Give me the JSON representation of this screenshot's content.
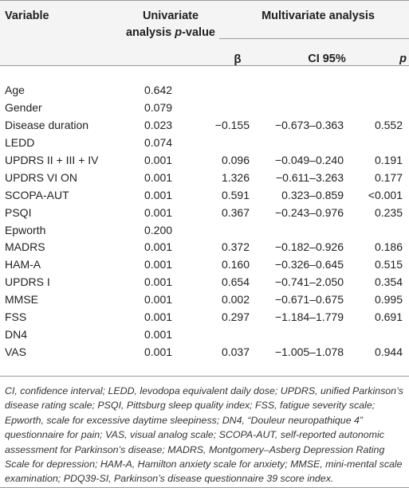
{
  "header": {
    "variable": "Variable",
    "univariate_line1": "Univariate",
    "univariate_line2_prefix": "analysis ",
    "univariate_line2_italic": "p",
    "univariate_line2_suffix": "-value",
    "multivariate": "Multivariate analysis",
    "beta": "β",
    "ci": "CI 95%",
    "p": "p"
  },
  "rows": [
    {
      "variable": "Age",
      "univariate": "0.642",
      "beta": "",
      "ci": "",
      "p": ""
    },
    {
      "variable": "Gender",
      "univariate": "0.079",
      "beta": "",
      "ci": "",
      "p": ""
    },
    {
      "variable": "Disease duration",
      "univariate": "0.023",
      "beta": "−0.155",
      "ci": "−0.673–0.363",
      "p": "0.552"
    },
    {
      "variable": "LEDD",
      "univariate": "0.074",
      "beta": "",
      "ci": "",
      "p": ""
    },
    {
      "variable": "UPDRS II + III + IV",
      "univariate": "0.001",
      "beta": "0.096",
      "ci": "−0.049–0.240",
      "p": "0.191"
    },
    {
      "variable": "UPDRS VI ON",
      "univariate": "0.001",
      "beta": "1.326",
      "ci": "−0.611–3.263",
      "p": "0.177"
    },
    {
      "variable": "SCOPA-AUT",
      "univariate": "0.001",
      "beta": "0.591",
      "ci": "0.323–0.859",
      "p": "<0.001"
    },
    {
      "variable": "PSQI",
      "univariate": "0.001",
      "beta": "0.367",
      "ci": "−0.243–0.976",
      "p": "0.235"
    },
    {
      "variable": "Epworth",
      "univariate": "0.200",
      "beta": "",
      "ci": "",
      "p": ""
    },
    {
      "variable": "MADRS",
      "univariate": "0.001",
      "beta": "0.372",
      "ci": "−0.182–0.926",
      "p": "0.186"
    },
    {
      "variable": "HAM-A",
      "univariate": "0.001",
      "beta": "0.160",
      "ci": "−0.326–0.645",
      "p": "0.515"
    },
    {
      "variable": "UPDRS I",
      "univariate": "0.001",
      "beta": "0.654",
      "ci": "−0.741–2.050",
      "p": "0.354"
    },
    {
      "variable": "MMSE",
      "univariate": "0.001",
      "beta": "0.002",
      "ci": "−0.671–0.675",
      "p": "0.995"
    },
    {
      "variable": "FSS",
      "univariate": "0.001",
      "beta": "0.297",
      "ci": "−1.184–1.779",
      "p": "0.691"
    },
    {
      "variable": "DN4",
      "univariate": "0.001",
      "beta": "",
      "ci": "",
      "p": ""
    },
    {
      "variable": "VAS",
      "univariate": "0.001",
      "beta": "0.037",
      "ci": "−1.005–1.078",
      "p": "0.944"
    }
  ],
  "footnote": "CI, confidence interval; LEDD, levodopa equivalent daily dose; UPDRS, unified Parkinson’s disease rating scale; PSQI, Pittsburg sleep quality index; FSS, fatigue severity scale; Epworth, scale for excessive daytime sleepiness; DN4, “Douleur neuropathique 4” questionnaire for pain; VAS, visual analog scale; SCOPA-AUT, self-reported autonomic assessment for Parkinson’s disease; MADRS, Montgomery–Asberg Depression Rating Scale for depression; HAM-A, Hamilton anxiety scale for anxiety; MMSE, mini-mental scale examination; PDQ39-SI, Parkinson’s disease questionnaire 39 score index.",
  "colors": {
    "header_background": "#f4f4f4",
    "rule": "#9a9a9a",
    "text": "#222222"
  }
}
